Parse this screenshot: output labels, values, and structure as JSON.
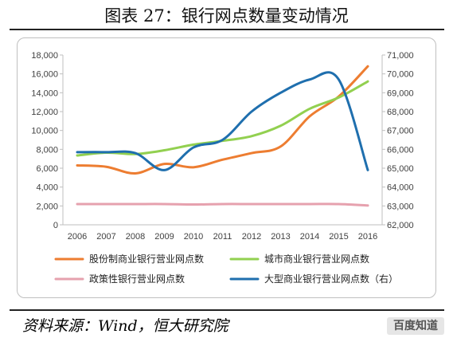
{
  "title": "图表 27：银行网点数量变动情况",
  "source": "资料来源：Wind，恒大研究院",
  "watermark": "百度知道",
  "chart_data": {
    "type": "line",
    "categories": [
      "2006",
      "2007",
      "2008",
      "2009",
      "2010",
      "2011",
      "2012",
      "2013",
      "2014",
      "2015",
      "2016"
    ],
    "y_left": {
      "min": 0,
      "max": 18000,
      "step": 2000,
      "ticks": [
        "0",
        "2,000",
        "4,000",
        "6,000",
        "8,000",
        "10,000",
        "12,000",
        "14,000",
        "16,000",
        "18,000"
      ]
    },
    "y_right": {
      "min": 62000,
      "max": 71000,
      "step": 1000,
      "ticks": [
        "62,000",
        "63,000",
        "64,000",
        "65,000",
        "66,000",
        "67,000",
        "68,000",
        "69,000",
        "70,000",
        "71,000"
      ]
    },
    "grid": false,
    "legend_position": "bottom",
    "series": [
      {
        "name": "股份制商业银行营业网点数",
        "axis": "left",
        "color": "#ED7D31",
        "values": [
          6300,
          6150,
          5450,
          6450,
          6100,
          6900,
          7600,
          8300,
          11500,
          13600,
          16800
        ]
      },
      {
        "name": "城市商业银行营业网点数",
        "axis": "left",
        "color": "#92D050",
        "values": [
          7350,
          7650,
          7500,
          7900,
          8500,
          8900,
          9400,
          10500,
          12300,
          13500,
          15200
        ]
      },
      {
        "name": "政策性银行营业网点数",
        "axis": "left",
        "color": "#E6A1AE",
        "values": [
          2200,
          2200,
          2200,
          2200,
          2150,
          2200,
          2200,
          2200,
          2200,
          2200,
          2050
        ]
      },
      {
        "name": "大型商业银行营业网点数（右）",
        "axis": "right",
        "color": "#1F6FAE",
        "values": [
          65850,
          65850,
          65800,
          64900,
          66100,
          66500,
          68000,
          69000,
          69700,
          69700,
          64900
        ]
      }
    ]
  }
}
